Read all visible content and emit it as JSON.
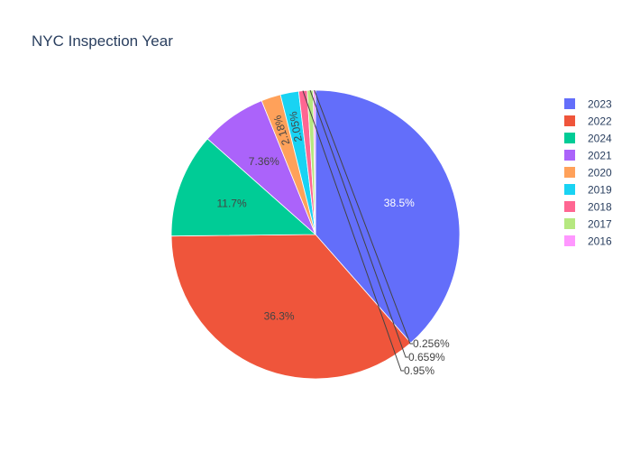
{
  "chart_data": {
    "type": "pie",
    "title": "NYC Inspection Year",
    "categories": [
      "2023",
      "2022",
      "2024",
      "2021",
      "2020",
      "2019",
      "2018",
      "2017",
      "2016"
    ],
    "values": [
      38.5,
      36.3,
      11.7,
      7.36,
      2.18,
      2.05,
      0.95,
      0.659,
      0.256
    ],
    "value_labels": [
      "38.5%",
      "36.3%",
      "11.7%",
      "7.36%",
      "2.18%",
      "2.05%",
      "0.95%",
      "0.659%",
      "0.256%"
    ],
    "colors": [
      "#636efa",
      "#ef553b",
      "#00cc96",
      "#ab63fa",
      "#ffa15a",
      "#19d3f3",
      "#ff6692",
      "#b6e880",
      "#ff97ff"
    ],
    "legend": {
      "placement": "top-right",
      "entries": [
        "2023",
        "2022",
        "2024",
        "2021",
        "2020",
        "2019",
        "2018",
        "2017",
        "2016"
      ]
    },
    "direction": "clockwise",
    "start": "top"
  }
}
